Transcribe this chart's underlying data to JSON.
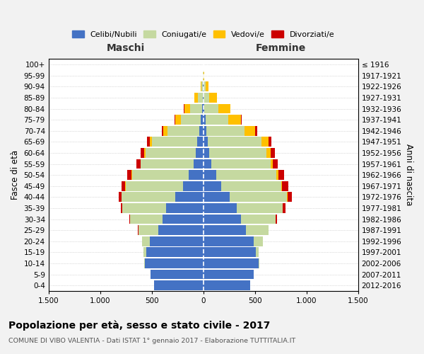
{
  "age_groups": [
    "0-4",
    "5-9",
    "10-14",
    "15-19",
    "20-24",
    "25-29",
    "30-34",
    "35-39",
    "40-44",
    "45-49",
    "50-54",
    "55-59",
    "60-64",
    "65-69",
    "70-74",
    "75-79",
    "80-84",
    "85-89",
    "90-94",
    "95-99",
    "100+"
  ],
  "birth_years": [
    "2012-2016",
    "2007-2011",
    "2002-2006",
    "1997-2001",
    "1992-1996",
    "1987-1991",
    "1982-1986",
    "1977-1981",
    "1972-1976",
    "1967-1971",
    "1962-1966",
    "1957-1961",
    "1952-1956",
    "1947-1951",
    "1942-1946",
    "1937-1941",
    "1932-1936",
    "1927-1931",
    "1922-1926",
    "1917-1921",
    "≤ 1916"
  ],
  "maschi": {
    "celibi": [
      480,
      510,
      565,
      555,
      520,
      435,
      395,
      360,
      270,
      195,
      145,
      95,
      70,
      60,
      40,
      25,
      15,
      8,
      3,
      1,
      0
    ],
    "coniugati": [
      0,
      0,
      5,
      25,
      75,
      195,
      315,
      425,
      525,
      555,
      545,
      510,
      490,
      440,
      310,
      195,
      115,
      45,
      15,
      5,
      0
    ],
    "vedovi": [
      0,
      0,
      0,
      0,
      0,
      0,
      0,
      0,
      0,
      5,
      5,
      5,
      10,
      15,
      35,
      50,
      55,
      35,
      10,
      2,
      0
    ],
    "divorziati": [
      0,
      0,
      0,
      0,
      0,
      5,
      10,
      15,
      25,
      35,
      40,
      40,
      35,
      30,
      15,
      10,
      5,
      0,
      0,
      0,
      0
    ]
  },
  "femmine": {
    "nubili": [
      455,
      485,
      535,
      510,
      490,
      410,
      365,
      325,
      255,
      175,
      125,
      75,
      55,
      45,
      30,
      20,
      10,
      5,
      2,
      0,
      0
    ],
    "coniugate": [
      0,
      0,
      5,
      25,
      85,
      220,
      335,
      445,
      555,
      580,
      585,
      575,
      555,
      520,
      370,
      225,
      135,
      55,
      20,
      5,
      0
    ],
    "vedove": [
      0,
      0,
      0,
      0,
      0,
      0,
      0,
      0,
      5,
      10,
      15,
      20,
      40,
      65,
      105,
      120,
      115,
      75,
      30,
      5,
      0
    ],
    "divorziate": [
      0,
      0,
      0,
      0,
      0,
      5,
      15,
      25,
      45,
      60,
      60,
      50,
      45,
      30,
      15,
      10,
      5,
      0,
      0,
      0,
      0
    ]
  },
  "colors": {
    "celibi": "#4472c4",
    "coniugati": "#c5d9a0",
    "vedovi": "#ffc000",
    "divorziati": "#cc0000"
  },
  "xlim": 1500,
  "title": "Popolazione per età, sesso e stato civile - 2017",
  "subtitle": "COMUNE DI VIBO VALENTIA - Dati ISTAT 1° gennaio 2017 - Elaborazione TUTTITALIA.IT",
  "ylabel": "Fasce di età",
  "ylabel_right": "Anni di nascita",
  "label_maschi": "Maschi",
  "label_femmine": "Femmine",
  "bg_color": "#f2f2f2",
  "plot_bg": "#ffffff",
  "legend_labels": [
    "Celibi/Nubili",
    "Coniugati/e",
    "Vedovi/e",
    "Divorziati/e"
  ]
}
